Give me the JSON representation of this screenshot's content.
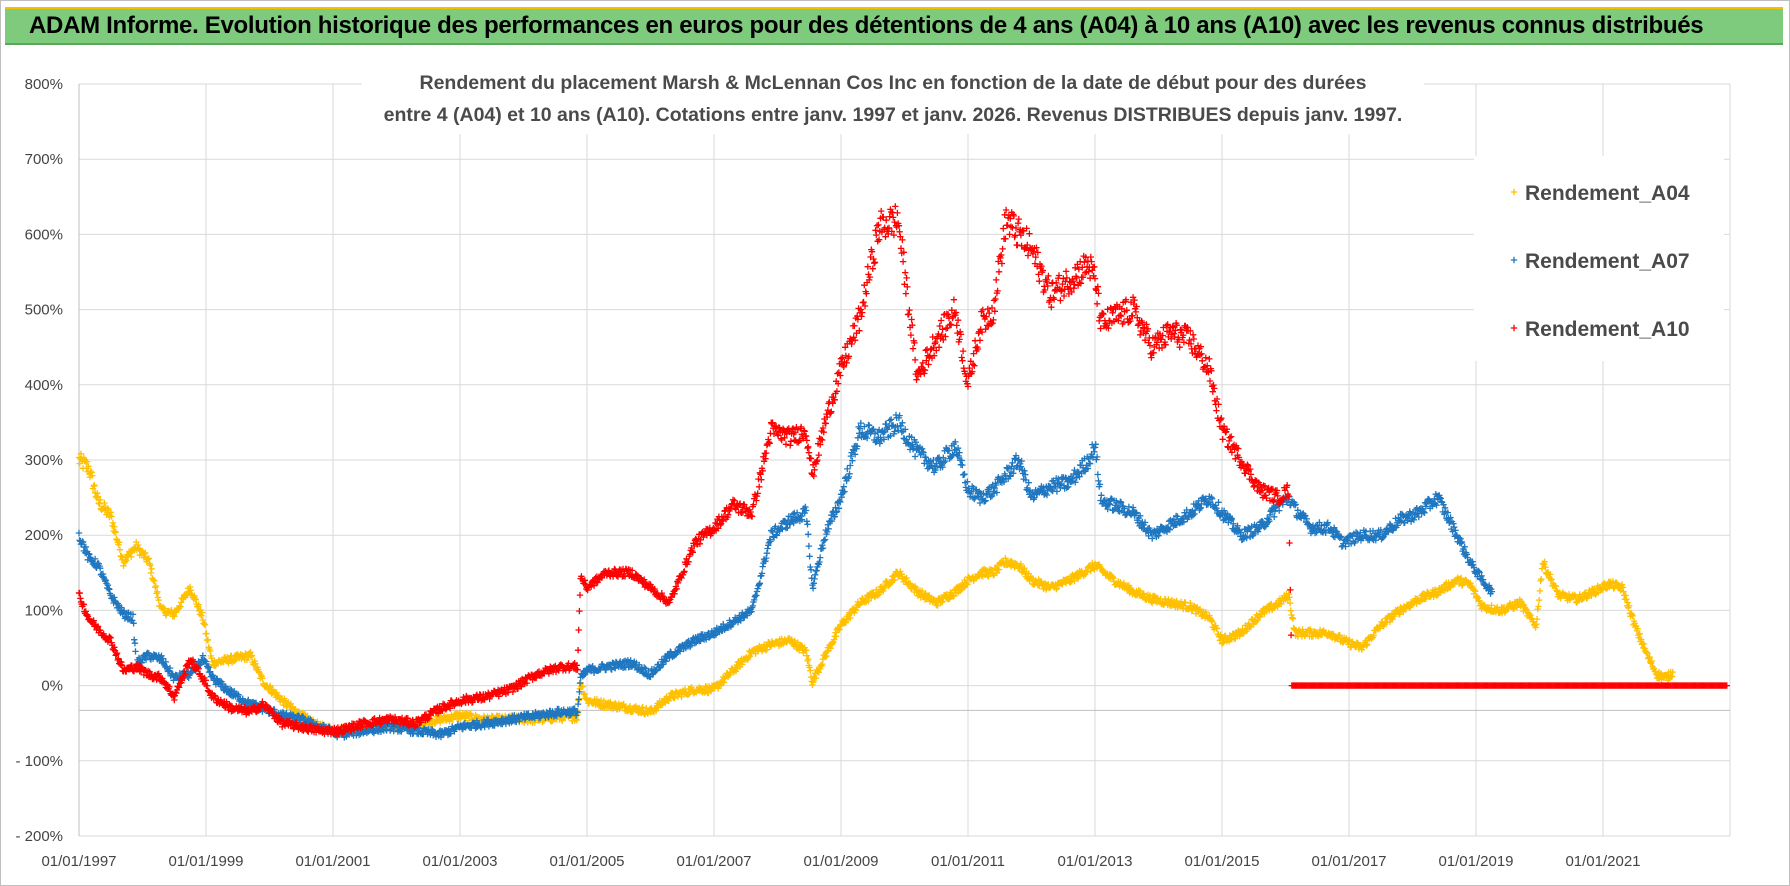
{
  "header": {
    "banner_title": "ADAM Informe. Evolution historique des performances en euros pour des détentions de 4 ans (A04) à 10 ans (A10) avec les revenus connus distribués"
  },
  "chart_data": {
    "type": "scatter",
    "title_line1": "Rendement du placement Marsh & McLennan Cos Inc en fonction de la date de début pour des durées",
    "title_line2": "entre 4 (A04) et 10 ans (A10).  Cotations entre janv. 1997 et janv. 2026. Revenus DISTRIBUES  depuis janv. 1997.",
    "xlabel": "",
    "ylabel": "",
    "x_range_years": [
      1997.0,
      2023.0
    ],
    "ylim": [
      -200,
      800
    ],
    "y_ticks": [
      {
        "value": 800,
        "label": "800%"
      },
      {
        "value": 700,
        "label": "700%"
      },
      {
        "value": 600,
        "label": "600%"
      },
      {
        "value": 500,
        "label": "500%"
      },
      {
        "value": 400,
        "label": "400%"
      },
      {
        "value": 300,
        "label": "300%"
      },
      {
        "value": 200,
        "label": "200%"
      },
      {
        "value": 100,
        "label": "100%"
      },
      {
        "value": 0,
        "label": "0%"
      },
      {
        "value": -100,
        "label": "- 100%"
      },
      {
        "value": -200,
        "label": "- 200%"
      }
    ],
    "x_ticks": [
      {
        "value": 1997,
        "label": "01/01/1997"
      },
      {
        "value": 1999,
        "label": "01/01/1999"
      },
      {
        "value": 2001,
        "label": "01/01/2001"
      },
      {
        "value": 2003,
        "label": "01/01/2003"
      },
      {
        "value": 2005,
        "label": "01/01/2005"
      },
      {
        "value": 2007,
        "label": "01/01/2007"
      },
      {
        "value": 2009,
        "label": "01/01/2009"
      },
      {
        "value": 2011,
        "label": "01/01/2011"
      },
      {
        "value": 2013,
        "label": "01/01/2013"
      },
      {
        "value": 2015,
        "label": "01/01/2015"
      },
      {
        "value": 2017,
        "label": "01/01/2017"
      },
      {
        "value": 2019,
        "label": "01/01/2019"
      },
      {
        "value": 2021,
        "label": "01/01/2021"
      }
    ],
    "vertical_gridlines_years": [
      1997,
      1999,
      2001,
      2003,
      2005,
      2007,
      2009,
      2011,
      2013,
      2015,
      2017,
      2019,
      2021,
      2023
    ],
    "legend_position": "top-right",
    "series": [
      {
        "name": "Rendement_A04",
        "color": "#ffc000",
        "marker": "plus",
        "points": [
          [
            1997.0,
            300
          ],
          [
            1997.15,
            290
          ],
          [
            1997.3,
            245
          ],
          [
            1997.5,
            225
          ],
          [
            1997.7,
            165
          ],
          [
            1997.9,
            185
          ],
          [
            1998.1,
            165
          ],
          [
            1998.3,
            100
          ],
          [
            1998.5,
            95
          ],
          [
            1998.75,
            130
          ],
          [
            1998.95,
            90
          ],
          [
            1999.1,
            30
          ],
          [
            1999.4,
            35
          ],
          [
            1999.7,
            40
          ],
          [
            1999.9,
            5
          ],
          [
            2000.2,
            -20
          ],
          [
            2000.5,
            -40
          ],
          [
            2000.8,
            -55
          ],
          [
            2001.1,
            -60
          ],
          [
            2001.5,
            -55
          ],
          [
            2001.9,
            -55
          ],
          [
            2002.3,
            -50
          ],
          [
            2002.7,
            -45
          ],
          [
            2003.0,
            -40
          ],
          [
            2003.4,
            -45
          ],
          [
            2003.8,
            -45
          ],
          [
            2004.2,
            -45
          ],
          [
            2004.6,
            -42
          ],
          [
            2004.85,
            -42
          ],
          [
            2004.9,
            5
          ],
          [
            2005.0,
            -20
          ],
          [
            2005.3,
            -25
          ],
          [
            2005.7,
            -30
          ],
          [
            2006.0,
            -35
          ],
          [
            2006.3,
            -15
          ],
          [
            2006.7,
            -5
          ],
          [
            2007.0,
            -5
          ],
          [
            2007.3,
            20
          ],
          [
            2007.6,
            45
          ],
          [
            2007.9,
            55
          ],
          [
            2008.2,
            60
          ],
          [
            2008.45,
            45
          ],
          [
            2008.55,
            5
          ],
          [
            2008.75,
            40
          ],
          [
            2009.0,
            80
          ],
          [
            2009.3,
            110
          ],
          [
            2009.6,
            125
          ],
          [
            2009.9,
            150
          ],
          [
            2010.2,
            125
          ],
          [
            2010.5,
            110
          ],
          [
            2010.8,
            125
          ],
          [
            2011.0,
            140
          ],
          [
            2011.2,
            150
          ],
          [
            2011.4,
            150
          ],
          [
            2011.6,
            165
          ],
          [
            2011.8,
            160
          ],
          [
            2012.0,
            140
          ],
          [
            2012.3,
            130
          ],
          [
            2012.6,
            140
          ],
          [
            2012.9,
            155
          ],
          [
            2013.0,
            160
          ],
          [
            2013.3,
            140
          ],
          [
            2013.6,
            125
          ],
          [
            2013.9,
            115
          ],
          [
            2014.2,
            110
          ],
          [
            2014.5,
            105
          ],
          [
            2014.8,
            90
          ],
          [
            2015.0,
            60
          ],
          [
            2015.3,
            70
          ],
          [
            2015.6,
            95
          ],
          [
            2015.9,
            110
          ],
          [
            2016.05,
            120
          ],
          [
            2016.15,
            70
          ],
          [
            2016.4,
            70
          ],
          [
            2016.7,
            70
          ],
          [
            2016.9,
            60
          ],
          [
            2017.2,
            50
          ],
          [
            2017.5,
            80
          ],
          [
            2017.8,
            100
          ],
          [
            2018.1,
            115
          ],
          [
            2018.4,
            125
          ],
          [
            2018.7,
            140
          ],
          [
            2018.9,
            135
          ],
          [
            2019.1,
            105
          ],
          [
            2019.4,
            100
          ],
          [
            2019.7,
            110
          ],
          [
            2019.85,
            90
          ],
          [
            2019.95,
            80
          ],
          [
            2020.05,
            165
          ],
          [
            2020.3,
            120
          ],
          [
            2020.6,
            115
          ],
          [
            2020.85,
            125
          ],
          [
            2021.1,
            135
          ],
          [
            2021.3,
            130
          ],
          [
            2021.5,
            80
          ],
          [
            2021.7,
            40
          ],
          [
            2021.85,
            15
          ],
          [
            2022.0,
            10
          ],
          [
            2022.1,
            18
          ]
        ]
      },
      {
        "name": "Rendement_A07",
        "color": "#1f77c0",
        "marker": "plus",
        "points": [
          [
            1997.0,
            200
          ],
          [
            1997.15,
            170
          ],
          [
            1997.3,
            160
          ],
          [
            1997.5,
            120
          ],
          [
            1997.7,
            95
          ],
          [
            1997.85,
            90
          ],
          [
            1997.9,
            30
          ],
          [
            1998.1,
            40
          ],
          [
            1998.3,
            35
          ],
          [
            1998.5,
            10
          ],
          [
            1998.75,
            15
          ],
          [
            1998.95,
            35
          ],
          [
            1999.1,
            10
          ],
          [
            1999.4,
            -10
          ],
          [
            1999.7,
            -25
          ],
          [
            1999.9,
            -30
          ],
          [
            2000.2,
            -40
          ],
          [
            2000.5,
            -45
          ],
          [
            2000.8,
            -55
          ],
          [
            2001.1,
            -65
          ],
          [
            2001.5,
            -60
          ],
          [
            2001.9,
            -55
          ],
          [
            2002.3,
            -60
          ],
          [
            2002.7,
            -65
          ],
          [
            2003.0,
            -55
          ],
          [
            2003.4,
            -50
          ],
          [
            2003.8,
            -45
          ],
          [
            2004.2,
            -40
          ],
          [
            2004.6,
            -35
          ],
          [
            2004.85,
            -35
          ],
          [
            2004.9,
            10
          ],
          [
            2005.0,
            20
          ],
          [
            2005.3,
            25
          ],
          [
            2005.7,
            30
          ],
          [
            2006.0,
            15
          ],
          [
            2006.3,
            40
          ],
          [
            2006.7,
            60
          ],
          [
            2007.0,
            70
          ],
          [
            2007.3,
            85
          ],
          [
            2007.6,
            100
          ],
          [
            2007.9,
            200
          ],
          [
            2008.2,
            220
          ],
          [
            2008.45,
            230
          ],
          [
            2008.55,
            130
          ],
          [
            2008.75,
            200
          ],
          [
            2009.0,
            250
          ],
          [
            2009.3,
            340
          ],
          [
            2009.6,
            330
          ],
          [
            2009.9,
            350
          ],
          [
            2010.2,
            310
          ],
          [
            2010.5,
            290
          ],
          [
            2010.8,
            320
          ],
          [
            2011.0,
            260
          ],
          [
            2011.2,
            250
          ],
          [
            2011.4,
            260
          ],
          [
            2011.6,
            280
          ],
          [
            2011.8,
            300
          ],
          [
            2012.0,
            250
          ],
          [
            2012.3,
            265
          ],
          [
            2012.6,
            270
          ],
          [
            2012.9,
            300
          ],
          [
            2013.0,
            320
          ],
          [
            2013.1,
            245
          ],
          [
            2013.3,
            240
          ],
          [
            2013.6,
            230
          ],
          [
            2013.9,
            200
          ],
          [
            2014.2,
            215
          ],
          [
            2014.5,
            230
          ],
          [
            2014.8,
            250
          ],
          [
            2015.0,
            230
          ],
          [
            2015.3,
            200
          ],
          [
            2015.6,
            210
          ],
          [
            2015.9,
            240
          ],
          [
            2016.05,
            250
          ],
          [
            2016.15,
            235
          ],
          [
            2016.4,
            210
          ],
          [
            2016.7,
            210
          ],
          [
            2016.9,
            190
          ],
          [
            2017.2,
            200
          ],
          [
            2017.5,
            200
          ],
          [
            2017.8,
            220
          ],
          [
            2018.1,
            230
          ],
          [
            2018.4,
            250
          ],
          [
            2018.7,
            200
          ],
          [
            2018.9,
            165
          ],
          [
            2019.1,
            140
          ],
          [
            2019.25,
            125
          ]
        ]
      },
      {
        "name": "Rendement_A10",
        "color": "#ff0000",
        "marker": "plus",
        "points": [
          [
            1997.0,
            120
          ],
          [
            1997.15,
            90
          ],
          [
            1997.3,
            75
          ],
          [
            1997.5,
            60
          ],
          [
            1997.7,
            20
          ],
          [
            1997.9,
            25
          ],
          [
            1998.1,
            15
          ],
          [
            1998.3,
            10
          ],
          [
            1998.5,
            -15
          ],
          [
            1998.75,
            35
          ],
          [
            1998.95,
            10
          ],
          [
            1999.1,
            -15
          ],
          [
            1999.4,
            -30
          ],
          [
            1999.7,
            -35
          ],
          [
            1999.9,
            -25
          ],
          [
            2000.2,
            -50
          ],
          [
            2000.5,
            -55
          ],
          [
            2000.8,
            -60
          ],
          [
            2001.1,
            -60
          ],
          [
            2001.5,
            -50
          ],
          [
            2001.9,
            -45
          ],
          [
            2002.3,
            -50
          ],
          [
            2002.7,
            -30
          ],
          [
            2003.0,
            -20
          ],
          [
            2003.4,
            -15
          ],
          [
            2003.8,
            -5
          ],
          [
            2004.2,
            15
          ],
          [
            2004.6,
            25
          ],
          [
            2004.85,
            25
          ],
          [
            2004.9,
            145
          ],
          [
            2005.0,
            130
          ],
          [
            2005.3,
            150
          ],
          [
            2005.7,
            150
          ],
          [
            2006.0,
            130
          ],
          [
            2006.3,
            110
          ],
          [
            2006.7,
            190
          ],
          [
            2007.0,
            210
          ],
          [
            2007.3,
            240
          ],
          [
            2007.6,
            230
          ],
          [
            2007.9,
            340
          ],
          [
            2008.2,
            330
          ],
          [
            2008.45,
            340
          ],
          [
            2008.55,
            280
          ],
          [
            2008.75,
            350
          ],
          [
            2009.0,
            420
          ],
          [
            2009.3,
            490
          ],
          [
            2009.6,
            610
          ],
          [
            2009.9,
            620
          ],
          [
            2010.2,
            410
          ],
          [
            2010.5,
            460
          ],
          [
            2010.8,
            500
          ],
          [
            2011.0,
            400
          ],
          [
            2011.2,
            480
          ],
          [
            2011.4,
            500
          ],
          [
            2011.6,
            620
          ],
          [
            2011.8,
            600
          ],
          [
            2012.0,
            580
          ],
          [
            2012.3,
            520
          ],
          [
            2012.6,
            540
          ],
          [
            2012.9,
            560
          ],
          [
            2013.0,
            540
          ],
          [
            2013.1,
            480
          ],
          [
            2013.3,
            490
          ],
          [
            2013.6,
            500
          ],
          [
            2013.9,
            450
          ],
          [
            2014.2,
            470
          ],
          [
            2014.5,
            460
          ],
          [
            2014.8,
            420
          ],
          [
            2015.0,
            340
          ],
          [
            2015.3,
            300
          ],
          [
            2015.6,
            260
          ],
          [
            2015.9,
            250
          ],
          [
            2016.05,
            260
          ],
          [
            2016.1,
            0
          ],
          [
            2017.0,
            0
          ],
          [
            2018.0,
            0
          ],
          [
            2019.0,
            0
          ],
          [
            2020.0,
            0
          ],
          [
            2021.0,
            0
          ],
          [
            2022.0,
            0
          ],
          [
            2022.95,
            0
          ]
        ]
      }
    ]
  }
}
